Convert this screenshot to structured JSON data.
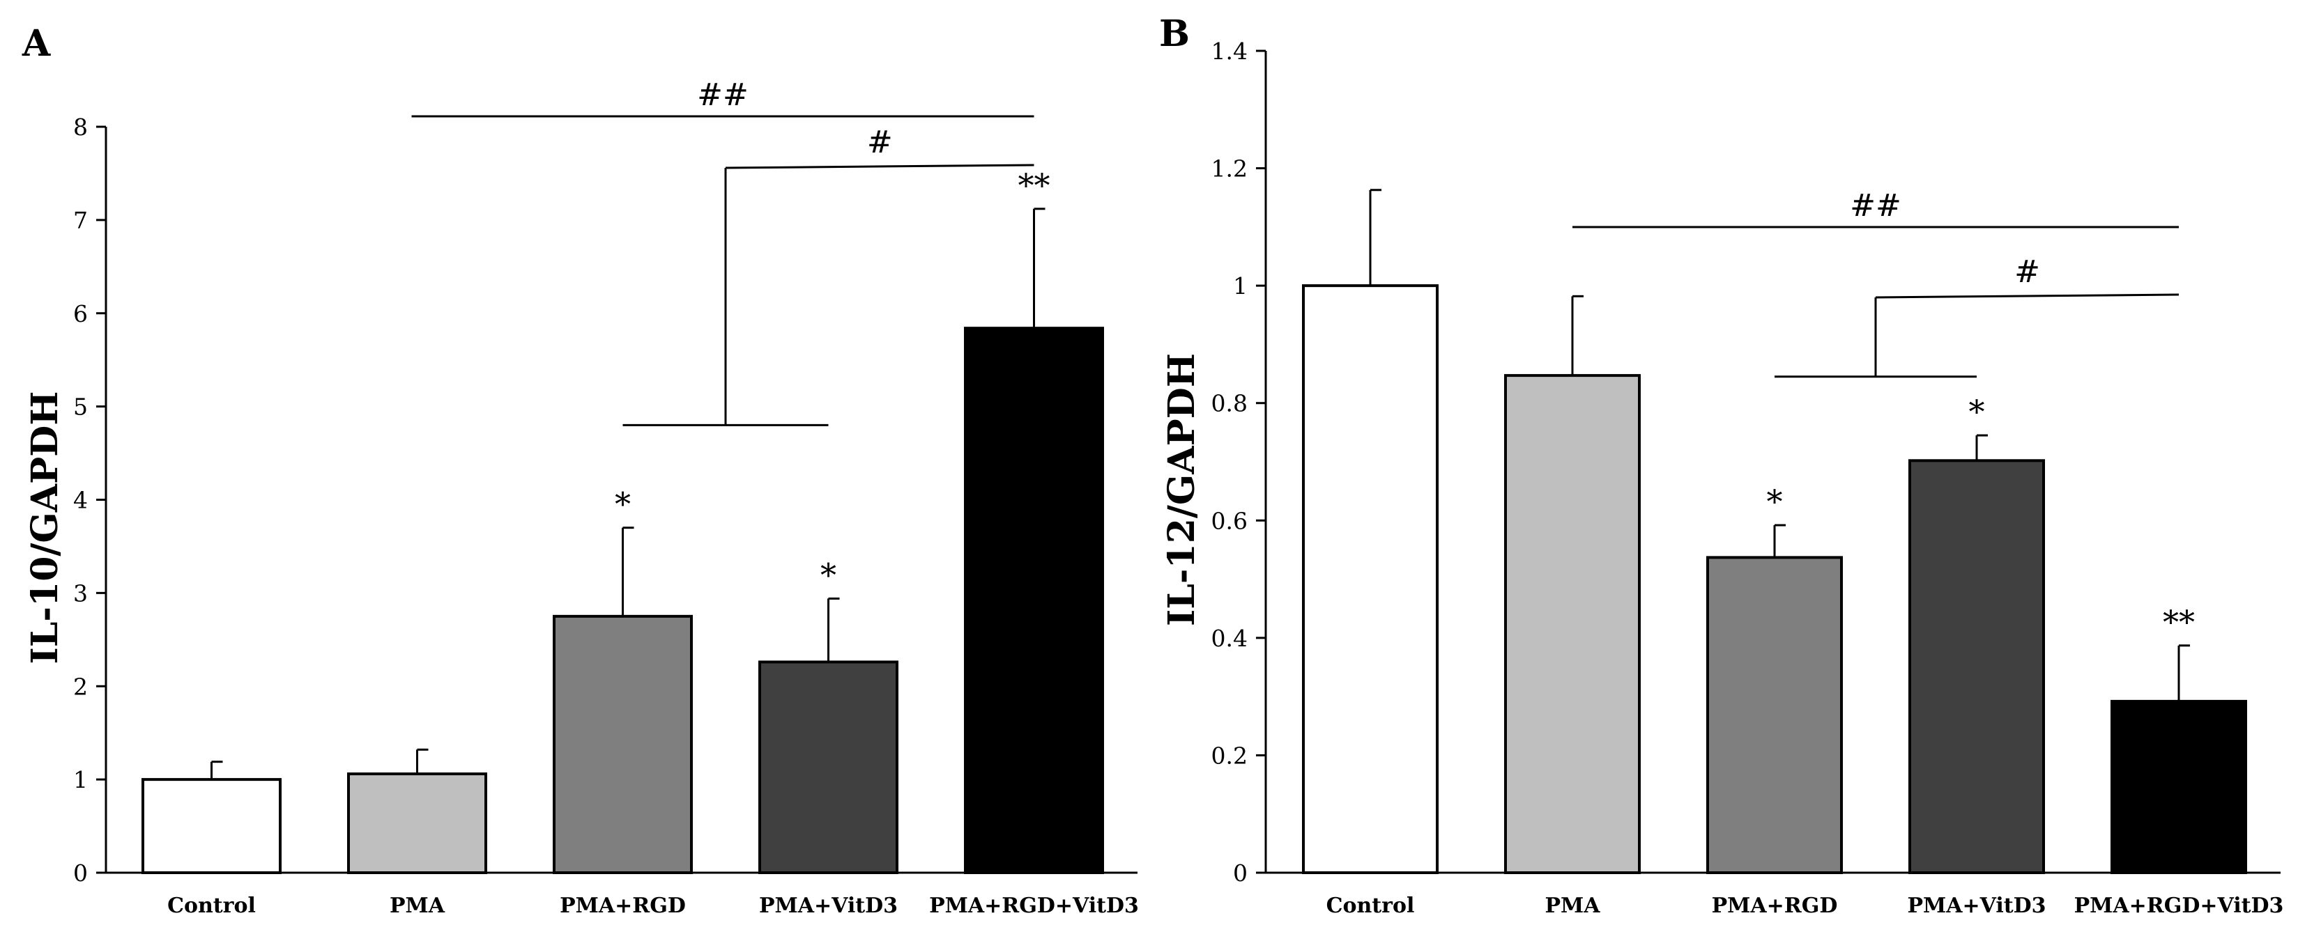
{
  "chart_data": [
    {
      "panel_label": "A",
      "type": "bar",
      "categories": [
        "Control",
        "PMA",
        "PMA+RGD",
        "PMA+VitD3",
        "PMA+RGD+VitD3"
      ],
      "values": [
        1.0,
        1.06,
        2.75,
        2.26,
        5.84
      ],
      "errors": [
        0.19,
        0.26,
        0.95,
        0.68,
        1.28
      ],
      "bar_colors": [
        "#ffffff",
        "#bfbfbf",
        "#7f7f7f",
        "#404040",
        "#000000"
      ],
      "ylabel": "IL-10/GAPDH",
      "ylim": [
        0,
        8
      ],
      "yticks": [
        0,
        1,
        2,
        3,
        4,
        5,
        6,
        7,
        8
      ],
      "grid": false,
      "legend": false,
      "bar_annotations": [
        "",
        "",
        "*",
        "*",
        "**"
      ],
      "significance": [
        {
          "label": "##",
          "style": "line",
          "from_category": 1,
          "to_category": 4,
          "y": 8.1
        },
        {
          "label": "#",
          "style": "bracket",
          "from_categories": [
            2,
            3
          ],
          "to_category": 4,
          "y_group": 4.8,
          "y": 7.6
        }
      ]
    },
    {
      "panel_label": "B",
      "type": "bar",
      "categories": [
        "Control",
        "PMA",
        "PMA+RGD",
        "PMA+VitD3",
        "PMA+RGD+VitD3"
      ],
      "values": [
        1.0,
        0.847,
        0.537,
        0.702,
        0.292
      ],
      "errors": [
        0.163,
        0.135,
        0.055,
        0.043,
        0.095
      ],
      "bar_colors": [
        "#ffffff",
        "#bfbfbf",
        "#7f7f7f",
        "#404040",
        "#000000"
      ],
      "ylabel": "IL-12/GAPDH",
      "ylim": [
        0,
        1.4
      ],
      "yticks": [
        0,
        0.2,
        0.4,
        0.6,
        0.8,
        1,
        1.2,
        1.4
      ],
      "grid": false,
      "legend": false,
      "bar_annotations": [
        "",
        "",
        "*",
        "*",
        "**"
      ],
      "significance": [
        {
          "label": "##",
          "style": "line",
          "from_category": 1,
          "to_category": 4,
          "y": 1.1
        },
        {
          "label": "#",
          "style": "bracket",
          "from_categories": [
            2,
            3
          ],
          "to_category": 4,
          "y_group": 0.845,
          "y": 0.985
        }
      ]
    }
  ]
}
